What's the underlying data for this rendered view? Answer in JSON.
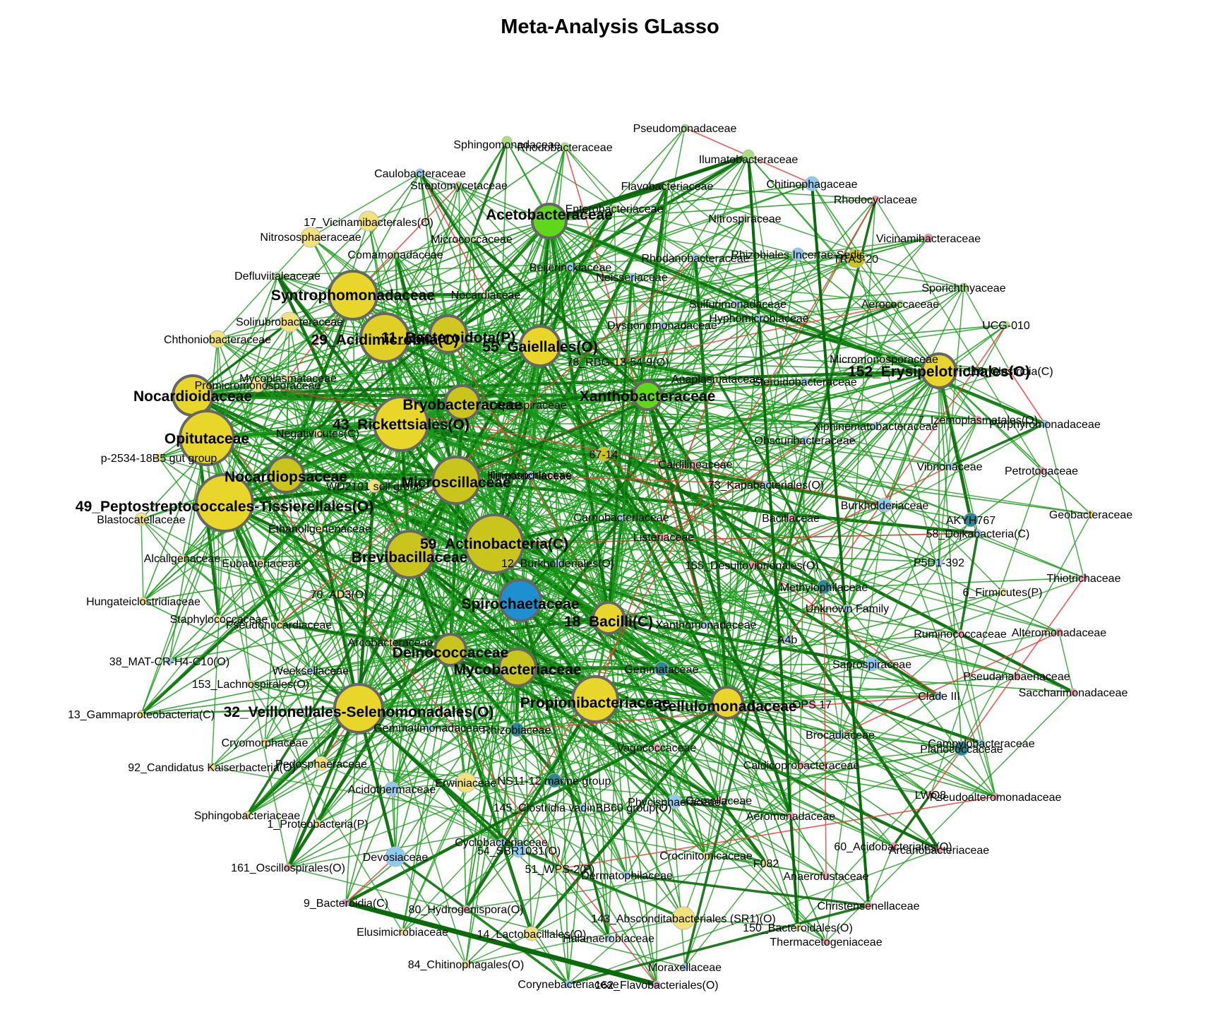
{
  "title": "Meta-Analysis GLasso",
  "colors": {
    "positive_edge": "#1a9a1a",
    "strong_edge": "#0a6b0a",
    "negative_edge": "#ee3b3b",
    "hub_yellow": "#e8d62a",
    "hub_olive": "#c9c51c",
    "hub_green": "#5fd81a",
    "hub_blue": "#1e90d0",
    "small_yellow": "#f3e27a",
    "small_lightblue": "#8ec9ee",
    "small_green": "#a8e07c",
    "small_pink": "#f29aa4",
    "small_teal": "#2a8a90",
    "node_outline": "#666666"
  },
  "nodes": [
    {
      "id": 0,
      "label": "Syntrophomonadaceae",
      "hub": true,
      "color": "#e8d62a"
    },
    {
      "id": 1,
      "label": "29_Acidimicrobiia(C)",
      "hub": true,
      "color": "#e0cf26"
    },
    {
      "id": 2,
      "label": "11_Bacteroidota(P)",
      "hub": true,
      "color": "#cfc822"
    },
    {
      "id": 3,
      "label": "55_Gaiellales(O)",
      "hub": true,
      "color": "#e8d62a"
    },
    {
      "id": 4,
      "label": "Nocardioidaceae",
      "hub": true,
      "color": "#e8d62a"
    },
    {
      "id": 5,
      "label": "Opitutaceae",
      "hub": true,
      "color": "#e8d62a"
    },
    {
      "id": 6,
      "label": "43_Rickettsiales(O)",
      "hub": true,
      "color": "#e8d62a"
    },
    {
      "id": 7,
      "label": "Bryobacteraceae",
      "hub": true,
      "color": "#c9c51c"
    },
    {
      "id": 8,
      "label": "Nocardiopsaceae",
      "hub": true,
      "color": "#c9c51c"
    },
    {
      "id": 9,
      "label": "Microscillaceae",
      "hub": true,
      "color": "#c9c51c"
    },
    {
      "id": 10,
      "label": "49_Peptostreptococcales-Tissierellales(O)",
      "hub": true,
      "color": "#e8d62a"
    },
    {
      "id": 11,
      "label": "59_Actinobacteria(C)",
      "hub": true,
      "color": "#c9c51c"
    },
    {
      "id": 12,
      "label": "Brevibacillaceae",
      "hub": true,
      "color": "#c9c51c"
    },
    {
      "id": 13,
      "label": "Spirochaetaceae",
      "hub": true,
      "color": "#1e90d0"
    },
    {
      "id": 14,
      "label": "18_Bacilli(C)",
      "hub": true,
      "color": "#e8d62a"
    },
    {
      "id": 15,
      "label": "Deinococcaceae",
      "hub": true,
      "color": "#c9c51c"
    },
    {
      "id": 16,
      "label": "Mycobacteriaceae",
      "hub": true,
      "color": "#c9c51c"
    },
    {
      "id": 17,
      "label": "Propionibacteriaceae",
      "hub": true,
      "color": "#e8d62a"
    },
    {
      "id": 18,
      "label": "Cellulomonadaceae",
      "hub": true,
      "color": "#e8d62a"
    },
    {
      "id": 19,
      "label": "32_Veillonellales-Selenomonadales(O)",
      "hub": true,
      "color": "#e8d62a"
    },
    {
      "id": 20,
      "label": "Acetobacteraceae",
      "hub": true,
      "color": "#5fd81a"
    },
    {
      "id": 21,
      "label": "Xanthobacteraceae",
      "hub": true,
      "color": "#5fd81a"
    },
    {
      "id": 22,
      "label": "152_Erysipelotrichales(O)",
      "hub": true,
      "color": "#e8d62a"
    },
    {
      "id": 23,
      "label": "Pseudomonadaceae",
      "hub": false,
      "color": "#a8e07c"
    },
    {
      "id": 24,
      "label": "Sphingomonadaceae",
      "hub": false,
      "color": "#a8e07c"
    },
    {
      "id": 25,
      "label": "Rhodobacteraceae",
      "hub": false,
      "color": "#a8e07c"
    },
    {
      "id": 26,
      "label": "Ilumatobacteraceae",
      "hub": false,
      "color": "#a8e07c"
    },
    {
      "id": 27,
      "label": "Caulobacteraceae",
      "hub": false,
      "color": "#8ec9ee"
    },
    {
      "id": 28,
      "label": "Streptomycetaceae",
      "hub": false,
      "color": "#a8e07c"
    },
    {
      "id": 29,
      "label": "Flavobacteriaceae",
      "hub": false,
      "color": "#a8e07c"
    },
    {
      "id": 30,
      "label": "Chitinophagaceae",
      "hub": false,
      "color": "#8ec9ee"
    },
    {
      "id": 31,
      "label": "Rhodocyclaceae",
      "hub": false,
      "color": "#f29aa4"
    },
    {
      "id": 32,
      "label": "Enterobacteriaceae",
      "hub": false,
      "color": "#a8e07c"
    },
    {
      "id": 33,
      "label": "17_Vicinamibacterales(O)",
      "hub": false,
      "color": "#f3e27a"
    },
    {
      "id": 34,
      "label": "Nitrososphaeraceae",
      "hub": false,
      "color": "#f3e27a"
    },
    {
      "id": 35,
      "label": "Micrococcaceae",
      "hub": false,
      "color": "#a8e07c"
    },
    {
      "id": 36,
      "label": "Nitrospiraceae",
      "hub": false,
      "color": "#a8e07c"
    },
    {
      "id": 37,
      "label": "Vicinamibacteraceae",
      "hub": false,
      "color": "#f29aa4"
    },
    {
      "id": 38,
      "label": "Comamonadaceae",
      "hub": false,
      "color": "#a8e07c"
    },
    {
      "id": 39,
      "label": "Beijerinckiaceae",
      "hub": false,
      "color": "#8ec9ee"
    },
    {
      "id": 40,
      "label": "Rhodanobacteraceae",
      "hub": false,
      "color": "#8ec9ee"
    },
    {
      "id": 41,
      "label": "Rhizobiales Incertae Sedis",
      "hub": false,
      "color": "#8ec9ee"
    },
    {
      "id": 42,
      "label": "TRA3-20",
      "hub": false,
      "color": "#c9c51c"
    },
    {
      "id": 43,
      "label": "Defluviitaleaceae",
      "hub": false,
      "color": "#a8e07c"
    },
    {
      "id": 44,
      "label": "Neisseriaceae",
      "hub": false,
      "color": "#8ec9ee"
    },
    {
      "id": 45,
      "label": "Sporichthyaceae",
      "hub": false,
      "color": "#a8e07c"
    },
    {
      "id": 46,
      "label": "Nocardiaceae",
      "hub": false,
      "color": "#a8e07c"
    },
    {
      "id": 47,
      "label": "Aerococcaceae",
      "hub": false,
      "color": "#a8e07c"
    },
    {
      "id": 48,
      "label": "Sulfurimonadaceae",
      "hub": false,
      "color": "#8ec9ee"
    },
    {
      "id": 49,
      "label": "Solirubrobacteraceae",
      "hub": false,
      "color": "#f3e27a"
    },
    {
      "id": 50,
      "label": "Hyphomicrobiaceae",
      "hub": false,
      "color": "#8ec9ee"
    },
    {
      "id": 51,
      "label": "UCG-010",
      "hub": false,
      "color": "#a8e07c"
    },
    {
      "id": 52,
      "label": "Chthoniobacteraceae",
      "hub": false,
      "color": "#f3e27a"
    },
    {
      "id": 53,
      "label": "Dysgonomonadaceae",
      "hub": false,
      "color": "#8ec9ee"
    },
    {
      "id": 54,
      "label": "78_RBG-13-54-9(O)",
      "hub": false,
      "color": "#f3e27a"
    },
    {
      "id": 55,
      "label": "Micromonosporaceae",
      "hub": false,
      "color": "#a8e07c"
    },
    {
      "id": 56,
      "label": "116_Clostridia(C)",
      "hub": false,
      "color": "#f3e27a"
    },
    {
      "id": 57,
      "label": "Mycoplasmataceae",
      "hub": false,
      "color": "#f3e27a"
    },
    {
      "id": 58,
      "label": "Promicromonosporaceae",
      "hub": false,
      "color": "#f3e27a"
    },
    {
      "id": 59,
      "label": "Anaplasmataceae",
      "hub": false,
      "color": "#a8e07c"
    },
    {
      "id": 60,
      "label": "Steroidobacteraceae",
      "hub": false,
      "color": "#8ec9ee"
    },
    {
      "id": 61,
      "label": "Leptospiraceae",
      "hub": false,
      "color": "#c9c51c"
    },
    {
      "id": 62,
      "label": "7_Izemoplasmatales(O)",
      "hub": false,
      "color": "#f29aa4"
    },
    {
      "id": 63,
      "label": "Negativicutes(C)",
      "hub": false,
      "color": "#f3e27a"
    },
    {
      "id": 64,
      "label": "Xiphinematobacteraceae",
      "hub": false,
      "color": "#8ec9ee"
    },
    {
      "id": 65,
      "label": "Porphyromonadaceae",
      "hub": false,
      "color": "#8ec9ee"
    },
    {
      "id": 66,
      "label": "p-2534-18B5 gut group",
      "hub": false,
      "color": "#f3e27a"
    },
    {
      "id": 67,
      "label": "Obscuribacteraceae",
      "hub": false,
      "color": "#8ec9ee"
    },
    {
      "id": 68,
      "label": "67-14",
      "hub": false,
      "color": "#c9c51c"
    },
    {
      "id": 69,
      "label": "Caldilineaceae",
      "hub": false,
      "color": "#f29aa4"
    },
    {
      "id": 70,
      "label": "Vibrionaceae",
      "hub": false,
      "color": "#8ec9ee"
    },
    {
      "id": 71,
      "label": "Petrotogaceae",
      "hub": false,
      "color": "#f29aa4"
    },
    {
      "id": 72,
      "label": "WD2101 soil group",
      "hub": false,
      "color": "#f3e27a"
    },
    {
      "id": 73,
      "label": "Kineosporiaceae",
      "hub": false,
      "color": "#8ec9ee"
    },
    {
      "id": 74,
      "label": "Ilumatrichlaceae",
      "hub": false,
      "color": "#8ec9ee"
    },
    {
      "id": 75,
      "label": "73_Kapabacteriales(O)",
      "hub": false,
      "color": "#8ec9ee"
    },
    {
      "id": 76,
      "label": "Burkholderiaceae",
      "hub": false,
      "color": "#8ec9ee"
    },
    {
      "id": 77,
      "label": "Blastocatellaceae",
      "hub": false,
      "color": "#f3e27a"
    },
    {
      "id": 78,
      "label": "Carnobacteriaceae",
      "hub": false,
      "color": "#8ec9ee"
    },
    {
      "id": 79,
      "label": "Bacillaceae",
      "hub": false,
      "color": "#f29aa4"
    },
    {
      "id": 80,
      "label": "AKYH767",
      "hub": false,
      "color": "#2a8a90"
    },
    {
      "id": 81,
      "label": "Geobacteraceae",
      "hub": false,
      "color": "#f3e27a"
    },
    {
      "id": 82,
      "label": "58_Dojkabacteria(C)",
      "hub": false,
      "color": "#8ec9ee"
    },
    {
      "id": 83,
      "label": "Ethanoligenenaceae",
      "hub": false,
      "color": "#f3e27a"
    },
    {
      "id": 84,
      "label": "Listeriaceae",
      "hub": false,
      "color": "#f29aa4"
    },
    {
      "id": 85,
      "label": "Alcaligenaceae",
      "hub": false,
      "color": "#f3e27a"
    },
    {
      "id": 86,
      "label": "Eubacteriaceae",
      "hub": false,
      "color": "#f3e27a"
    },
    {
      "id": 87,
      "label": "12_Burkholderiales(O)",
      "hub": false,
      "color": "#8ec9ee"
    },
    {
      "id": 88,
      "label": "155_Desulfovibrionales(O)",
      "hub": false,
      "color": "#f29aa4"
    },
    {
      "id": 89,
      "label": "P5D1-392",
      "hub": false,
      "color": "#8ec9ee"
    },
    {
      "id": 90,
      "label": "70_AD3(O)",
      "hub": false,
      "color": "#f3e27a"
    },
    {
      "id": 91,
      "label": "Hungateiclostridiaceae",
      "hub": false,
      "color": "#f3e27a"
    },
    {
      "id": 92,
      "label": "Methylophilaceae",
      "hub": false,
      "color": "#2a8a90"
    },
    {
      "id": 93,
      "label": "Thiotrichaceae",
      "hub": false,
      "color": "#f29aa4"
    },
    {
      "id": 94,
      "label": "6_Firmicutes(P)",
      "hub": false,
      "color": "#f3e27a"
    },
    {
      "id": 95,
      "label": "Staphylococcaceae",
      "hub": false,
      "color": "#f3e27a"
    },
    {
      "id": 96,
      "label": "Pseudonocardiaceae",
      "hub": false,
      "color": "#f3e27a"
    },
    {
      "id": 97,
      "label": "Unknown Family",
      "hub": false,
      "color": "#8ec9ee"
    },
    {
      "id": 98,
      "label": "Xanthomonadaceae",
      "hub": false,
      "color": "#8ec9ee"
    },
    {
      "id": 99,
      "label": "Ruminococcaceae",
      "hub": false,
      "color": "#f29aa4"
    },
    {
      "id": 100,
      "label": "Alteromonadaceae",
      "hub": false,
      "color": "#f29aa4"
    },
    {
      "id": 101,
      "label": "A4b",
      "hub": false,
      "color": "#8ec9ee"
    },
    {
      "id": 102,
      "label": "Arcobacteraceae",
      "hub": false,
      "color": "#f3e27a"
    },
    {
      "id": 103,
      "label": "38_MAT-CR-H4-C10(O)",
      "hub": false,
      "color": "#8ec9ee"
    },
    {
      "id": 104,
      "label": "Weeksellaceae",
      "hub": false,
      "color": "#8ec9ee"
    },
    {
      "id": 105,
      "label": "Gemmataceae",
      "hub": false,
      "color": "#2a8a90"
    },
    {
      "id": 106,
      "label": "Saprospiraceae",
      "hub": false,
      "color": "#8ec9ee"
    },
    {
      "id": 107,
      "label": "Pseudanabaenaceae",
      "hub": false,
      "color": "#f29aa4"
    },
    {
      "id": 108,
      "label": "153_Lachnospirales(O)",
      "hub": false,
      "color": "#f3e27a"
    },
    {
      "id": 109,
      "label": "Saccharimonadaceae",
      "hub": false,
      "color": "#f29aa4"
    },
    {
      "id": 110,
      "label": "Clade III",
      "hub": false,
      "color": "#8ec9ee"
    },
    {
      "id": 111,
      "label": "13_Gammaproteobacteria(C)",
      "hub": false,
      "color": "#f3e27a"
    },
    {
      "id": 112,
      "label": "OPS 17",
      "hub": false,
      "color": "#f29aa4"
    },
    {
      "id": 113,
      "label": "Gemmatimonadaceae",
      "hub": false,
      "color": "#8ec9ee"
    },
    {
      "id": 114,
      "label": "Rhizobiaceae",
      "hub": false,
      "color": "#2a8a90"
    },
    {
      "id": 115,
      "label": "Brocadiaceae",
      "hub": false,
      "color": "#8ec9ee"
    },
    {
      "id": 116,
      "label": "Cryomorphaceae",
      "hub": false,
      "color": "#f3e27a"
    },
    {
      "id": 117,
      "label": "Vagococcaceae",
      "hub": false,
      "color": "#f29aa4"
    },
    {
      "id": 118,
      "label": "Campylobacteraceae",
      "hub": false,
      "color": "#8ec9ee"
    },
    {
      "id": 119,
      "label": "Planococcaceae",
      "hub": false,
      "color": "#2a8a90"
    },
    {
      "id": 120,
      "label": "92_Candidatus Kaiserbacteria(O)",
      "hub": false,
      "color": "#f3e27a"
    },
    {
      "id": 121,
      "label": "Pedosphaeraceae",
      "hub": false,
      "color": "#f3e27a"
    },
    {
      "id": 122,
      "label": "Caldicoprobacteraceae",
      "hub": false,
      "color": "#f29aa4"
    },
    {
      "id": 123,
      "label": "Erwiniaceae",
      "hub": false,
      "color": "#f3e27a"
    },
    {
      "id": 124,
      "label": "NS11-12 marine group",
      "hub": false,
      "color": "#2a8a90"
    },
    {
      "id": 125,
      "label": "Acidothermaceae",
      "hub": false,
      "color": "#8ec9ee"
    },
    {
      "id": 126,
      "label": "LWQ8",
      "hub": false,
      "color": "#f29aa4"
    },
    {
      "id": 127,
      "label": "Pseudoalteromonadaceae",
      "hub": false,
      "color": "#f29aa4"
    },
    {
      "id": 128,
      "label": "Sphingobacteriaceae",
      "hub": false,
      "color": "#f3e27a"
    },
    {
      "id": 129,
      "label": "145_Clostridia vadinBB60 group(O)",
      "hub": false,
      "color": "#8ec9ee"
    },
    {
      "id": 130,
      "label": "Phycisphaeraceae",
      "hub": false,
      "color": "#8ec9ee"
    },
    {
      "id": 131,
      "label": "Gemellaceae",
      "hub": false,
      "color": "#f29aa4"
    },
    {
      "id": 132,
      "label": "1_Proteobacteria(P)",
      "hub": false,
      "color": "#f3e27a"
    },
    {
      "id": 133,
      "label": "Aeromonadaceae",
      "hub": false,
      "color": "#f29aa4"
    },
    {
      "id": 134,
      "label": "Cyclobacteriaceae",
      "hub": false,
      "color": "#8ec9ee"
    },
    {
      "id": 135,
      "label": "60_Acidobacteriales(O)",
      "hub": false,
      "color": "#f29aa4"
    },
    {
      "id": 136,
      "label": "Arcanobacteriaceae",
      "hub": false,
      "color": "#f29aa4"
    },
    {
      "id": 137,
      "label": "Devosiaceae",
      "hub": false,
      "color": "#8ec9ee"
    },
    {
      "id": 138,
      "label": "54_SBR1031(O)",
      "hub": false,
      "color": "#8ec9ee"
    },
    {
      "id": 139,
      "label": "Crocinitomicaceae",
      "hub": false,
      "color": "#f3e27a"
    },
    {
      "id": 140,
      "label": "161_Oscillospirales(O)",
      "hub": false,
      "color": "#f29aa4"
    },
    {
      "id": 141,
      "label": "51_WPS-2(P)",
      "hub": false,
      "color": "#f3e27a"
    },
    {
      "id": 142,
      "label": "F082",
      "hub": false,
      "color": "#f3e27a"
    },
    {
      "id": 143,
      "label": "Dermatophilaceae",
      "hub": false,
      "color": "#8ec9ee"
    },
    {
      "id": 144,
      "label": "Anaerofustaceae",
      "hub": false,
      "color": "#f29aa4"
    },
    {
      "id": 145,
      "label": "Christensenellaceae",
      "hub": false,
      "color": "#f29aa4"
    },
    {
      "id": 146,
      "label": "9_Bacteroidia(C)",
      "hub": false,
      "color": "#d79be0"
    },
    {
      "id": 147,
      "label": "80_Hydrogenispora(O)",
      "hub": false,
      "color": "#f29aa4"
    },
    {
      "id": 148,
      "label": "143_Absconditabacteriales (SR1)(O)",
      "hub": false,
      "color": "#f3e27a"
    },
    {
      "id": 149,
      "label": "Elusimicrobiaceae",
      "hub": false,
      "color": "#f3e27a"
    },
    {
      "id": 150,
      "label": "14_Lactobacillales(O)",
      "hub": false,
      "color": "#f3e27a"
    },
    {
      "id": 151,
      "label": "Halanaerobiaceae",
      "hub": false,
      "color": "#8ec9ee"
    },
    {
      "id": 152,
      "label": "150_Bacteroidales(O)",
      "hub": false,
      "color": "#f3e27a"
    },
    {
      "id": 153,
      "label": "Thermacetogeniaceae",
      "hub": false,
      "color": "#f29aa4"
    },
    {
      "id": 154,
      "label": "84_Chitinophagales(O)",
      "hub": false,
      "color": "#f3e27a"
    },
    {
      "id": 155,
      "label": "Moraxellaceae",
      "hub": false,
      "color": "#8ec9ee"
    },
    {
      "id": 156,
      "label": "Corynebacteriaceae",
      "hub": false,
      "color": "#8ec9ee"
    },
    {
      "id": 157,
      "label": "162_Flavobacteriales(O)",
      "hub": false,
      "color": "#d79be0"
    }
  ]
}
